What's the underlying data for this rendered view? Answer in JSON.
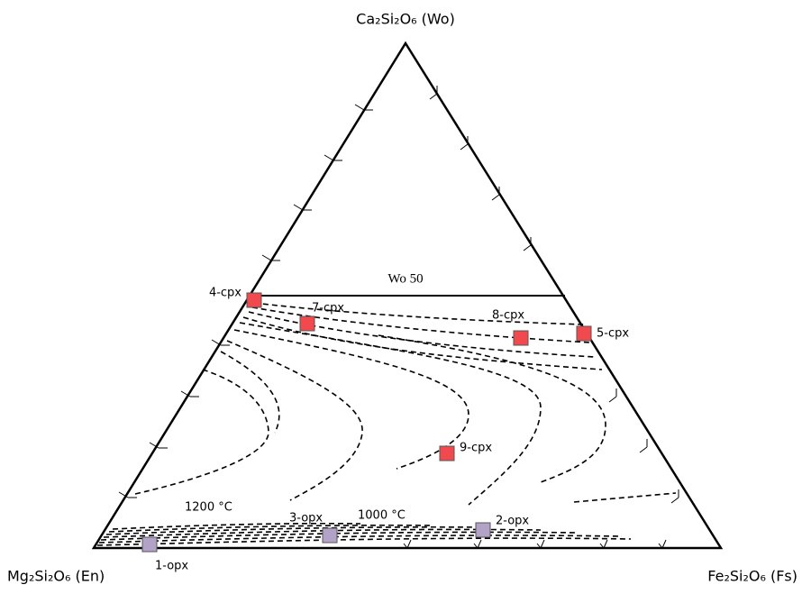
{
  "vertices": {
    "top": "Ca₂Si₂O₆ (Wo)",
    "left": "Mg₂Si₂O₆ (En)",
    "right": "Fe₂Si₂O₆ (Fs)"
  },
  "wo_line": "Wo 50",
  "isotherms": [
    "1200 °C",
    "1000 °C"
  ],
  "points": [
    {
      "label": "4-cpx"
    },
    {
      "label": "7-cpx"
    },
    {
      "label": "8-cpx"
    },
    {
      "label": "5-cpx"
    },
    {
      "label": "9-cpx"
    },
    {
      "label": "1-opx"
    },
    {
      "label": "3-opx"
    },
    {
      "label": "2-opx"
    }
  ]
}
